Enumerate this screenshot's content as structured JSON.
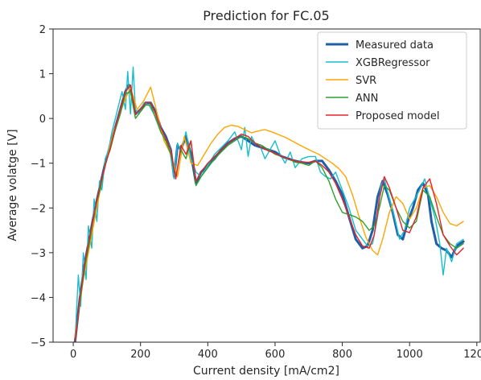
{
  "chart_data": {
    "type": "line",
    "title": "Prediction for FC.05",
    "xlabel": "Current density [mA/cm2]",
    "ylabel": "Average volatge [V]",
    "xlim": [
      -60,
      1210
    ],
    "ylim": [
      -5,
      2
    ],
    "xticks": [
      "0",
      "200",
      "400",
      "600",
      "800",
      "1000",
      "1200"
    ],
    "yticks": [
      "2",
      "1",
      "0",
      "−1",
      "−2",
      "−3",
      "−4",
      "−5"
    ],
    "grid": false,
    "legend_position": "top-right",
    "series": [
      {
        "name": "Measured data",
        "color": "#1f5fa8",
        "width": 3,
        "x": [
          5,
          20,
          35,
          50,
          65,
          80,
          95,
          110,
          125,
          140,
          155,
          165,
          175,
          185,
          200,
          215,
          230,
          245,
          260,
          275,
          290,
          300,
          310,
          320,
          335,
          350,
          365,
          380,
          400,
          420,
          440,
          460,
          480,
          500,
          520,
          540,
          560,
          580,
          600,
          620,
          640,
          660,
          680,
          700,
          720,
          740,
          760,
          780,
          800,
          820,
          840,
          860,
          875,
          890,
          905,
          920,
          935,
          950,
          965,
          980,
          995,
          1010,
          1025,
          1040,
          1055,
          1065,
          1080,
          1095,
          1110,
          1125,
          1140,
          1160
        ],
        "y": [
          -5.0,
          -4.0,
          -3.2,
          -2.6,
          -2.0,
          -1.5,
          -1.0,
          -0.6,
          -0.2,
          0.2,
          0.6,
          0.75,
          0.5,
          0.1,
          0.2,
          0.35,
          0.35,
          0.15,
          -0.2,
          -0.4,
          -0.7,
          -1.3,
          -0.6,
          -0.7,
          -0.4,
          -0.8,
          -1.45,
          -1.2,
          -1.05,
          -0.9,
          -0.7,
          -0.55,
          -0.45,
          -0.4,
          -0.5,
          -0.6,
          -0.65,
          -0.7,
          -0.75,
          -0.85,
          -0.9,
          -0.95,
          -0.98,
          -1.0,
          -0.95,
          -0.95,
          -1.15,
          -1.4,
          -1.7,
          -2.2,
          -2.7,
          -2.9,
          -2.85,
          -2.5,
          -1.75,
          -1.4,
          -1.7,
          -2.1,
          -2.6,
          -2.7,
          -2.3,
          -2.0,
          -1.6,
          -1.45,
          -1.7,
          -2.3,
          -2.8,
          -2.9,
          -2.95,
          -3.1,
          -2.85,
          -2.75
        ]
      },
      {
        "name": "XGBRegressor",
        "color": "#17becf",
        "width": 1.4,
        "x": [
          5,
          15,
          22,
          30,
          38,
          45,
          55,
          62,
          70,
          78,
          85,
          95,
          105,
          115,
          125,
          135,
          145,
          155,
          162,
          170,
          178,
          185,
          195,
          210,
          225,
          240,
          255,
          270,
          285,
          300,
          310,
          320,
          335,
          350,
          365,
          380,
          400,
          420,
          440,
          460,
          480,
          500,
          510,
          520,
          530,
          540,
          555,
          570,
          585,
          600,
          615,
          630,
          645,
          660,
          680,
          700,
          720,
          735,
          750,
          765,
          780,
          800,
          820,
          840,
          860,
          875,
          890,
          905,
          915,
          925,
          940,
          955,
          970,
          985,
          1000,
          1015,
          1030,
          1045,
          1060,
          1075,
          1090,
          1100,
          1110,
          1125,
          1140,
          1160
        ],
        "y": [
          -5.0,
          -3.5,
          -4.2,
          -3.0,
          -3.6,
          -2.4,
          -2.9,
          -1.8,
          -2.3,
          -1.4,
          -1.6,
          -0.9,
          -0.7,
          -0.3,
          0.0,
          0.3,
          0.6,
          0.2,
          1.05,
          0.1,
          1.15,
          0.2,
          0.1,
          0.35,
          0.3,
          0.1,
          -0.15,
          -0.45,
          -0.6,
          -1.35,
          -0.55,
          -0.75,
          -0.3,
          -0.9,
          -1.2,
          -1.3,
          -1.05,
          -0.8,
          -0.65,
          -0.5,
          -0.3,
          -0.7,
          -0.2,
          -0.85,
          -0.4,
          -0.55,
          -0.6,
          -0.9,
          -0.7,
          -0.5,
          -0.8,
          -1.0,
          -0.75,
          -1.1,
          -0.9,
          -0.85,
          -0.85,
          -1.2,
          -1.3,
          -1.35,
          -1.2,
          -1.6,
          -2.0,
          -2.5,
          -2.7,
          -2.85,
          -2.8,
          -2.2,
          -1.5,
          -1.35,
          -1.8,
          -2.2,
          -2.7,
          -2.5,
          -2.0,
          -1.8,
          -1.6,
          -1.35,
          -1.8,
          -2.2,
          -2.8,
          -3.5,
          -2.9,
          -3.2,
          -2.8,
          -2.7
        ]
      },
      {
        "name": "SVR",
        "color": "#ffa500",
        "width": 1.4,
        "x": [
          5,
          30,
          60,
          90,
          120,
          150,
          170,
          190,
          210,
          230,
          250,
          270,
          290,
          310,
          330,
          350,
          370,
          390,
          410,
          430,
          450,
          470,
          490,
          510,
          530,
          550,
          570,
          590,
          610,
          630,
          650,
          670,
          690,
          710,
          730,
          750,
          770,
          790,
          810,
          830,
          850,
          870,
          890,
          905,
          920,
          940,
          960,
          980,
          1000,
          1020,
          1040,
          1060,
          1080,
          1100,
          1120,
          1140,
          1160
        ],
        "y": [
          -4.9,
          -3.6,
          -2.4,
          -1.2,
          -0.3,
          0.35,
          0.7,
          0.2,
          0.4,
          0.7,
          0.1,
          -0.5,
          -0.8,
          -1.3,
          -0.4,
          -1.0,
          -1.05,
          -0.8,
          -0.55,
          -0.35,
          -0.2,
          -0.15,
          -0.18,
          -0.25,
          -0.32,
          -0.28,
          -0.25,
          -0.3,
          -0.36,
          -0.42,
          -0.5,
          -0.58,
          -0.66,
          -0.73,
          -0.8,
          -0.9,
          -1.0,
          -1.12,
          -1.3,
          -1.7,
          -2.2,
          -2.65,
          -2.95,
          -3.05,
          -2.7,
          -2.1,
          -1.75,
          -1.9,
          -2.25,
          -2.0,
          -1.55,
          -1.5,
          -1.75,
          -2.1,
          -2.35,
          -2.4,
          -2.3
        ]
      },
      {
        "name": "ANN",
        "color": "#2ca02c",
        "width": 1.4,
        "x": [
          5,
          20,
          35,
          50,
          65,
          80,
          95,
          110,
          125,
          140,
          155,
          170,
          185,
          200,
          215,
          230,
          245,
          260,
          275,
          290,
          305,
          320,
          335,
          350,
          365,
          380,
          400,
          420,
          440,
          460,
          480,
          500,
          520,
          540,
          560,
          580,
          600,
          620,
          640,
          660,
          680,
          700,
          720,
          740,
          760,
          780,
          800,
          820,
          840,
          860,
          880,
          895,
          910,
          925,
          940,
          960,
          980,
          1000,
          1020,
          1040,
          1060,
          1080,
          1100,
          1120,
          1140,
          1160
        ],
        "y": [
          -5.0,
          -4.1,
          -3.3,
          -2.7,
          -2.0,
          -1.6,
          -1.0,
          -0.7,
          -0.25,
          0.1,
          0.55,
          0.6,
          0.0,
          0.15,
          0.3,
          0.3,
          0.0,
          -0.3,
          -0.5,
          -0.8,
          -1.3,
          -0.7,
          -0.9,
          -0.5,
          -1.5,
          -1.3,
          -1.1,
          -0.9,
          -0.75,
          -0.6,
          -0.5,
          -0.4,
          -0.45,
          -0.55,
          -0.6,
          -0.7,
          -0.8,
          -0.85,
          -0.9,
          -0.98,
          -1.0,
          -1.05,
          -0.95,
          -1.1,
          -1.4,
          -1.8,
          -2.1,
          -2.15,
          -2.2,
          -2.3,
          -2.5,
          -2.4,
          -2.0,
          -1.5,
          -1.6,
          -2.0,
          -2.3,
          -2.45,
          -2.3,
          -1.6,
          -1.75,
          -2.2,
          -2.6,
          -2.8,
          -2.9,
          -2.8
        ]
      },
      {
        "name": "Proposed model",
        "color": "#e8202a",
        "width": 1.4,
        "x": [
          5,
          20,
          35,
          50,
          65,
          80,
          95,
          110,
          125,
          140,
          155,
          170,
          185,
          200,
          215,
          230,
          245,
          260,
          275,
          290,
          305,
          320,
          335,
          350,
          365,
          380,
          400,
          420,
          440,
          460,
          480,
          500,
          520,
          540,
          560,
          580,
          600,
          620,
          640,
          660,
          680,
          700,
          720,
          740,
          760,
          780,
          800,
          820,
          840,
          860,
          880,
          895,
          910,
          925,
          940,
          960,
          980,
          1000,
          1020,
          1040,
          1060,
          1080,
          1100,
          1120,
          1140,
          1160
        ],
        "y": [
          -5.0,
          -4.0,
          -3.2,
          -2.6,
          -2.0,
          -1.5,
          -1.05,
          -0.65,
          -0.2,
          0.2,
          0.6,
          0.75,
          0.1,
          0.2,
          0.35,
          0.35,
          0.1,
          -0.2,
          -0.45,
          -0.7,
          -1.35,
          -0.6,
          -0.8,
          -0.5,
          -1.4,
          -1.2,
          -1.0,
          -0.85,
          -0.7,
          -0.55,
          -0.45,
          -0.35,
          -0.4,
          -0.55,
          -0.65,
          -0.72,
          -0.78,
          -0.85,
          -0.9,
          -0.95,
          -0.98,
          -0.98,
          -0.95,
          -1.05,
          -1.2,
          -1.45,
          -1.8,
          -2.2,
          -2.6,
          -2.85,
          -2.9,
          -2.6,
          -1.8,
          -1.3,
          -1.55,
          -2.0,
          -2.5,
          -2.55,
          -2.2,
          -1.55,
          -1.35,
          -1.9,
          -2.6,
          -2.85,
          -3.05,
          -2.9
        ]
      }
    ]
  }
}
